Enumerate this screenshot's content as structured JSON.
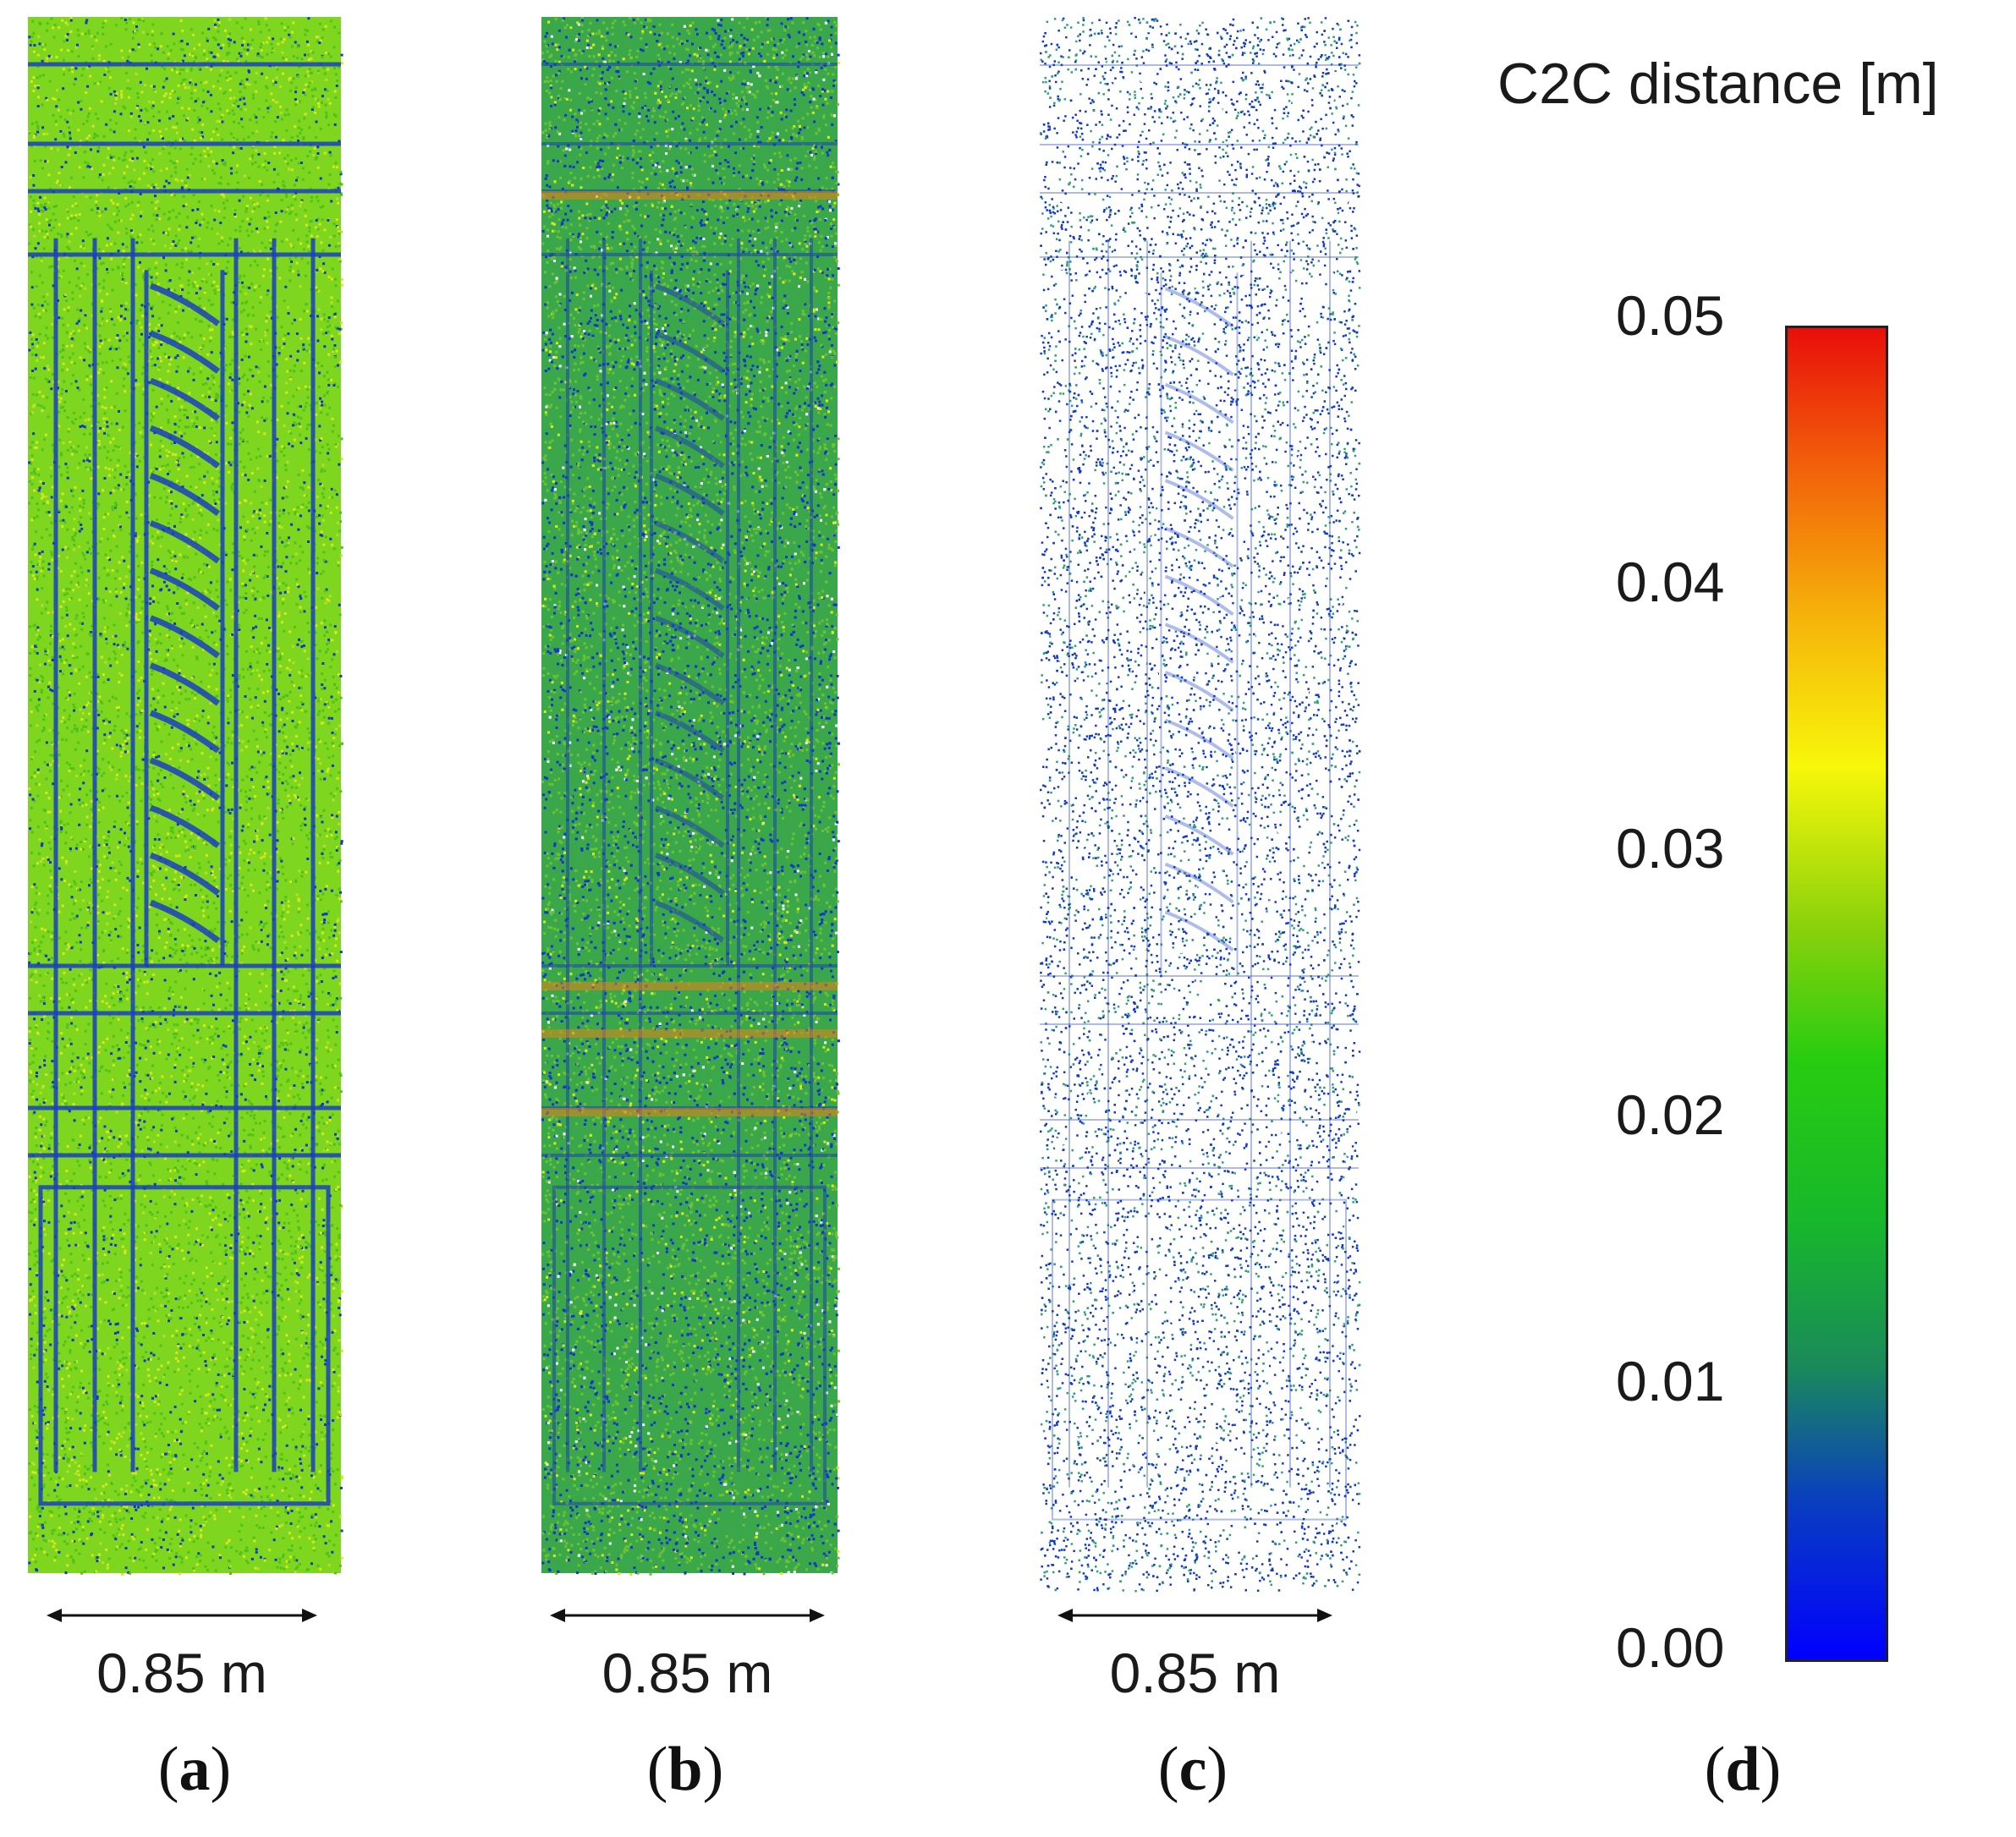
{
  "panels": [
    {
      "id": "a",
      "label_open": "(",
      "label_letter": "a",
      "label_close": ")",
      "scale_text": "0.85 m"
    },
    {
      "id": "b",
      "label_open": "(",
      "label_letter": "b",
      "label_close": ")",
      "scale_text": "0.85 m"
    },
    {
      "id": "c",
      "label_open": "(",
      "label_letter": "c",
      "label_close": ")",
      "scale_text": "0.85 m"
    }
  ],
  "colorbar": {
    "title": "C2C distance [m]",
    "ticks": [
      "0.05",
      "0.04",
      "0.03",
      "0.02",
      "0.01",
      "0.00"
    ],
    "panel_label_open": "(",
    "panel_label_letter": "d",
    "panel_label_close": ")",
    "colors": [
      "#0000ff",
      "#1a8a5a",
      "#27cc10",
      "#f7f70a",
      "#f2650a",
      "#e80f0a"
    ]
  }
}
